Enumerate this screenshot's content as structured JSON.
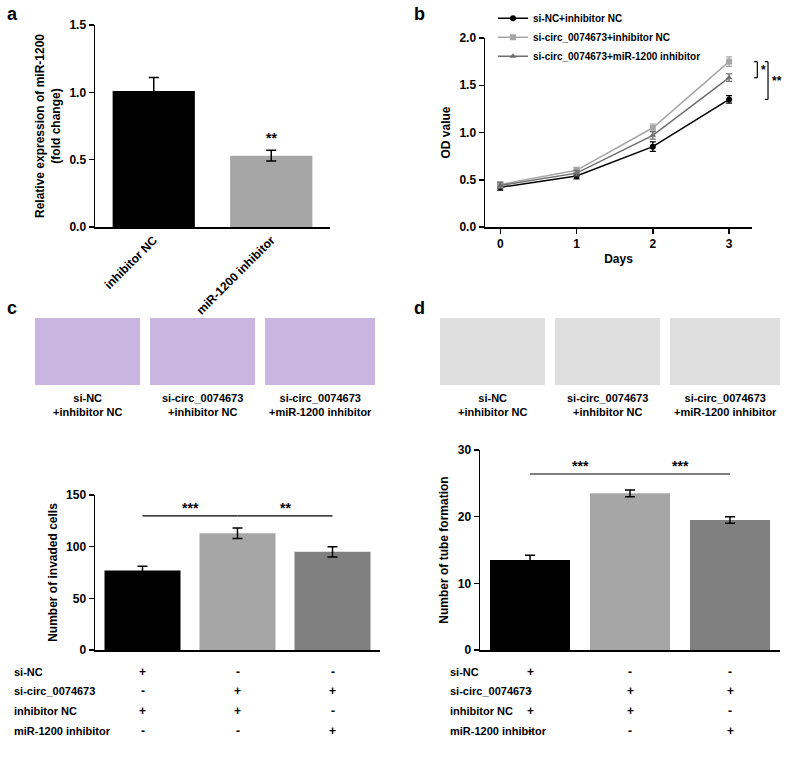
{
  "chart_data": [
    {
      "panel": "a",
      "type": "bar",
      "categories": [
        "inhibitor NC",
        "miR-1200 inhibitor"
      ],
      "values": [
        1.01,
        0.53
      ],
      "errors": [
        0.1,
        0.04
      ],
      "colors": [
        "#000000",
        "#a6a6a6"
      ],
      "ylabel": "Relative expression of miR-1200\n(fold change)",
      "ylim": [
        0,
        1.5
      ],
      "yticks": [
        {
          "value": 0,
          "label": "0.0"
        },
        {
          "value": 0.5,
          "label": "0.5"
        },
        {
          "value": 1,
          "label": "1.0"
        },
        {
          "value": 1.5,
          "label": "1.5"
        }
      ],
      "grid": false,
      "significance": [
        {
          "at": 1,
          "text": "**"
        }
      ]
    },
    {
      "panel": "b",
      "type": "line",
      "x": [
        0,
        1,
        2,
        3
      ],
      "xlabel": "Days",
      "ylabel": "OD value",
      "xlim": [
        -0.2,
        3.3
      ],
      "xticks": [
        0,
        1,
        2,
        3
      ],
      "ylim": [
        0,
        2
      ],
      "yticks": [
        {
          "value": 0,
          "label": "0.0"
        },
        {
          "value": 0.5,
          "label": "0.5"
        },
        {
          "value": 1,
          "label": "1.0"
        },
        {
          "value": 1.5,
          "label": "1.5"
        },
        {
          "value": 2,
          "label": "2.0"
        }
      ],
      "grid": false,
      "legend": "upper left",
      "series": [
        {
          "name": "si-NC+inhibitor NC",
          "color": "#000000",
          "marker": "circle",
          "values": [
            0.42,
            0.54,
            0.85,
            1.35
          ],
          "errors": [
            0.03,
            0.03,
            0.05,
            0.04
          ]
        },
        {
          "name": "si-circ_0074673+inhibitor NC",
          "color": "#a6a6a6",
          "marker": "square",
          "values": [
            0.45,
            0.6,
            1.05,
            1.75
          ],
          "errors": [
            0.03,
            0.03,
            0.04,
            0.05
          ]
        },
        {
          "name": "si-circ_0074673+miR-1200 inhibitor",
          "color": "#6e6e6e",
          "marker": "triangle-up",
          "values": [
            0.44,
            0.57,
            0.97,
            1.58
          ],
          "errors": [
            0.03,
            0.03,
            0.04,
            0.04
          ]
        }
      ],
      "comparisons": [
        {
          "series": [
            1,
            2
          ],
          "text": "*"
        },
        {
          "series": [
            1,
            0
          ],
          "text": "**"
        }
      ]
    },
    {
      "panel": "c",
      "type": "bar",
      "categories": [
        null,
        null,
        null
      ],
      "values": [
        77,
        113,
        95
      ],
      "errors": [
        4,
        5,
        5
      ],
      "colors": [
        "#000000",
        "#a6a6a6",
        "#808080"
      ],
      "ylabel": "Number of invaded cells",
      "ylim": [
        0,
        150
      ],
      "yticks": [
        0,
        50,
        100,
        150
      ],
      "grid": false,
      "tick_labels": "y",
      "significance": [
        {
          "from": 0,
          "to": 1,
          "text": "***"
        },
        {
          "from": 1,
          "to": 2,
          "text": "**"
        }
      ],
      "images": [
        "si-NC\n+inhibitor NC",
        "si-circ_0074673\n+inhibitor NC",
        "si-circ_0074673\n+miR-1200 inhibitor"
      ],
      "table": [
        {
          "label": "si-NC",
          "marks": [
            "+",
            "-",
            "-"
          ]
        },
        {
          "label": "si-circ_0074673",
          "marks": [
            "-",
            "+",
            "+"
          ]
        },
        {
          "label": "inhibitor NC",
          "marks": [
            "+",
            "+",
            "-"
          ]
        },
        {
          "label": "miR-1200 inhibitor",
          "marks": [
            "-",
            "-",
            "+"
          ]
        }
      ]
    },
    {
      "panel": "d",
      "type": "bar",
      "categories": [
        null,
        null,
        null
      ],
      "values": [
        13.5,
        23.5,
        19.5
      ],
      "errors": [
        0.7,
        0.5,
        0.5
      ],
      "colors": [
        "#000000",
        "#a6a6a6",
        "#808080"
      ],
      "ylabel": "Number of tube formation",
      "ylim": [
        0,
        30
      ],
      "yticks": [
        0,
        10,
        20,
        30
      ],
      "grid": false,
      "tick_labels": "y",
      "significance": [
        {
          "from": 0,
          "to": 1,
          "text": "***"
        },
        {
          "from": 1,
          "to": 2,
          "text": "***"
        }
      ],
      "images": [
        "si-NC\n+inhibitor NC",
        "si-circ_0074673\n+inhibitor NC",
        "si-circ_0074673\n+miR-1200 inhibitor"
      ],
      "table": [
        {
          "label": "si-NC",
          "marks": [
            "+",
            "-",
            "-"
          ]
        },
        {
          "label": "si-circ_0074673",
          "marks": [
            "-",
            "+",
            "+"
          ]
        },
        {
          "label": "inhibitor NC",
          "marks": [
            "+",
            "+",
            "-"
          ]
        },
        {
          "label": "miR-1200 inhibitor",
          "marks": [
            "-",
            "-",
            "+"
          ]
        }
      ]
    }
  ]
}
